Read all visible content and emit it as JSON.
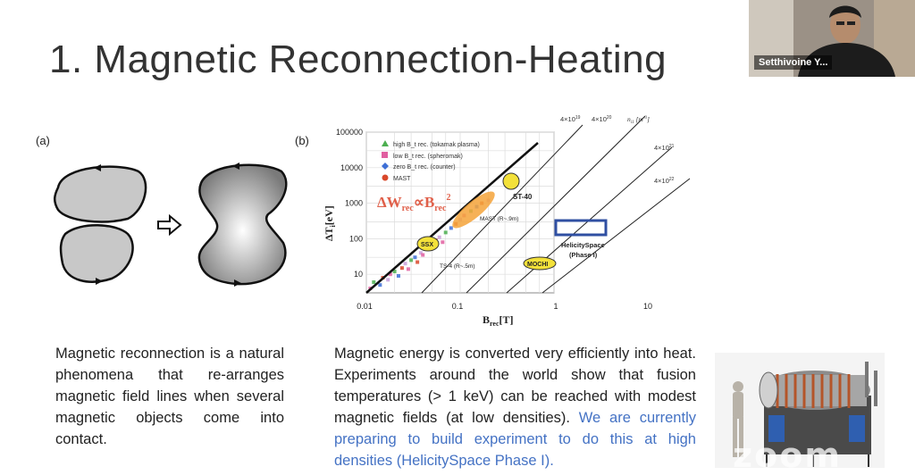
{
  "slide": {
    "title": "1. Magnetic Reconnection-Heating",
    "label_a": "(a)",
    "label_b": "(b)",
    "left_text": "Magnetic reconnection is a natural phenomena that re-arranges magnetic field lines when several magnetic objects come into contact.",
    "right_text": "Magnetic energy is converted very efficiently into heat. Experiments around the world show that fusion temperatures (> 1 keV) can be reached with modest magnetic fields (at low densities).",
    "right_text_highlight": "We are currently preparing to build experiment to do this at high densities (HelicitySpace Phase I).",
    "highlight_color": "#4472c4"
  },
  "webcam": {
    "name": "Setthivoine Y..."
  },
  "watermark": "zoom",
  "chart_data": {
    "type": "scatter",
    "xscale": "log",
    "yscale": "log",
    "xlim": [
      0.01,
      10
    ],
    "ylim": [
      3,
      100000
    ],
    "xlabel": "B_rec[T]",
    "ylabel": "ΔT_i[eV]",
    "x_ticks": [
      "0.01",
      "0.1",
      "1",
      "10"
    ],
    "y_ticks": [
      "100000",
      "10000",
      "1000",
      "100",
      "10"
    ],
    "legend": [
      {
        "label": "high B_t rec. (tokamak plasma)",
        "color": "#4caf50",
        "marker": "triangle"
      },
      {
        "label": "low B_t rec. (spheromak)",
        "color": "#e05fa0",
        "marker": "square"
      },
      {
        "label": "zero B_t rec. (counter)",
        "color": "#3d6fd6",
        "marker": "diamond"
      },
      {
        "label": "MAST",
        "color": "#d9482b",
        "marker": "circle"
      }
    ],
    "equation": "ΔW_rec ∝ B_rec^2",
    "density_labels": [
      "4×10^19",
      "4×10^20",
      "4×10^21",
      "4×10^22"
    ],
    "density_unit": "n_i1 [m^-3]",
    "annotations": [
      {
        "text": "ST-40",
        "x": 0.3,
        "y": 2000
      },
      {
        "text": "MAST (R~.9m)",
        "x": 0.15,
        "y": 200
      },
      {
        "text": "SSX",
        "x": 0.04,
        "y": 75
      },
      {
        "text": "TS-4 (R~.5m)",
        "x": 0.05,
        "y": 15
      },
      {
        "text": "MOCHI",
        "x": 0.6,
        "y": 15
      },
      {
        "text": "HelicitySpace (Phase I)",
        "x": 3,
        "y": 100
      }
    ],
    "points": [
      {
        "x": 0.011,
        "y": 4
      },
      {
        "x": 0.012,
        "y": 6
      },
      {
        "x": 0.014,
        "y": 5
      },
      {
        "x": 0.015,
        "y": 8
      },
      {
        "x": 0.017,
        "y": 7
      },
      {
        "x": 0.018,
        "y": 10
      },
      {
        "x": 0.02,
        "y": 12
      },
      {
        "x": 0.022,
        "y": 9
      },
      {
        "x": 0.024,
        "y": 15
      },
      {
        "x": 0.026,
        "y": 20
      },
      {
        "x": 0.028,
        "y": 14
      },
      {
        "x": 0.03,
        "y": 25
      },
      {
        "x": 0.033,
        "y": 30
      },
      {
        "x": 0.035,
        "y": 22
      },
      {
        "x": 0.038,
        "y": 40
      },
      {
        "x": 0.04,
        "y": 35
      },
      {
        "x": 0.045,
        "y": 55
      },
      {
        "x": 0.05,
        "y": 70
      },
      {
        "x": 0.055,
        "y": 90
      },
      {
        "x": 0.06,
        "y": 110
      },
      {
        "x": 0.065,
        "y": 80
      },
      {
        "x": 0.07,
        "y": 150
      },
      {
        "x": 0.08,
        "y": 200
      },
      {
        "x": 0.09,
        "y": 260
      },
      {
        "x": 0.1,
        "y": 350
      },
      {
        "x": 0.11,
        "y": 450
      },
      {
        "x": 0.13,
        "y": 600
      },
      {
        "x": 0.15,
        "y": 800
      },
      {
        "x": 0.17,
        "y": 1000
      },
      {
        "x": 0.2,
        "y": 1200
      }
    ]
  }
}
